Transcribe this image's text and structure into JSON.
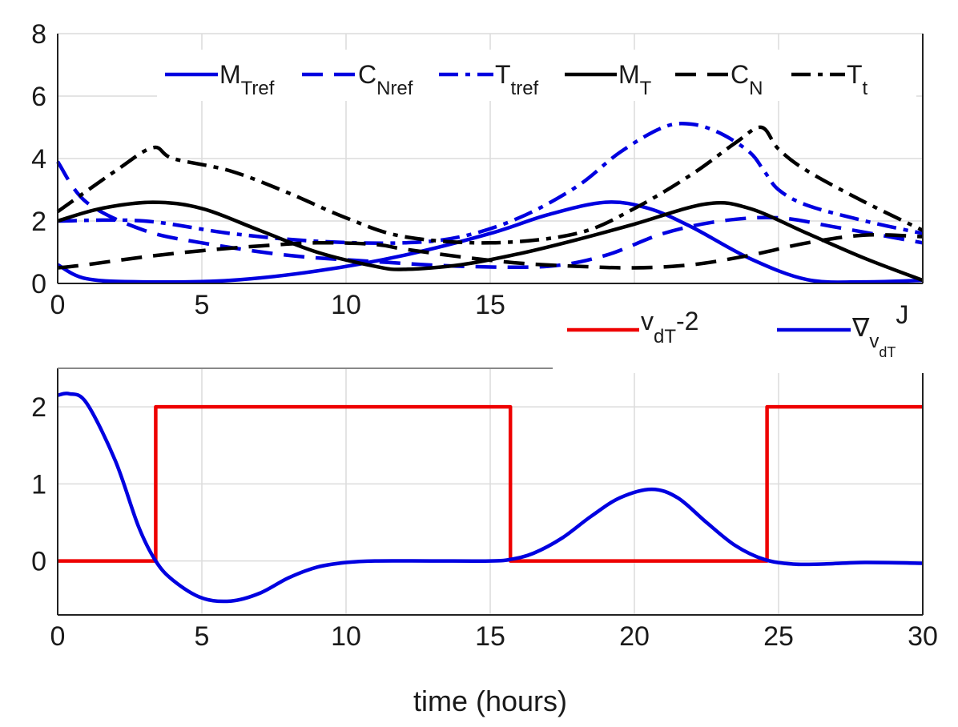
{
  "chart_data": [
    {
      "type": "line",
      "xlim": [
        0,
        30
      ],
      "ylim": [
        0,
        8
      ],
      "xticks": [
        0,
        5,
        10,
        15
      ],
      "yticks": [
        0,
        2,
        4,
        6,
        8
      ],
      "grid": true,
      "legend_placement": "top",
      "series": [
        {
          "name": "M_Tref",
          "label_main": "M",
          "label_sub": "Tref",
          "color": "#0000e0",
          "style": "solid",
          "x": [
            0,
            1,
            3,
            6,
            9,
            12,
            15,
            17,
            19,
            20.5,
            22,
            24,
            26,
            28,
            30
          ],
          "y": [
            0.6,
            0.15,
            0.05,
            0.1,
            0.4,
            0.9,
            1.6,
            2.2,
            2.6,
            2.4,
            1.8,
            0.8,
            0.12,
            0.05,
            0.1
          ]
        },
        {
          "name": "C_Nref",
          "label_main": "C",
          "label_sub": "Nref",
          "color": "#0000e0",
          "style": "dashed",
          "x": [
            0,
            1,
            3,
            5,
            8,
            11,
            14,
            17,
            19,
            21,
            23,
            25,
            27,
            30
          ],
          "y": [
            3.9,
            2.6,
            1.7,
            1.3,
            0.9,
            0.7,
            0.55,
            0.55,
            0.9,
            1.6,
            2.0,
            2.1,
            1.8,
            1.3
          ]
        },
        {
          "name": "T_tref",
          "label_main": "T",
          "label_sub": "tref",
          "color": "#0000e0",
          "style": "dashdot",
          "x": [
            0,
            3,
            6,
            9,
            12,
            14,
            16,
            18,
            19.5,
            21,
            22,
            23,
            24,
            24.5,
            25,
            26,
            28,
            30
          ],
          "y": [
            2.0,
            2.0,
            1.6,
            1.35,
            1.3,
            1.5,
            2.1,
            3.1,
            4.2,
            5.0,
            5.1,
            4.8,
            4.2,
            3.6,
            3.0,
            2.5,
            2.0,
            1.6
          ]
        },
        {
          "name": "M_T",
          "label_main": "M",
          "label_sub": "T",
          "color": "#000000",
          "style": "solid",
          "x": [
            0,
            1.5,
            3.3,
            5,
            7,
            9,
            11,
            12,
            14,
            16,
            18,
            20,
            22.5,
            24,
            26,
            28,
            30
          ],
          "y": [
            2.0,
            2.4,
            2.6,
            2.4,
            1.7,
            1.0,
            0.55,
            0.45,
            0.6,
            0.95,
            1.4,
            1.9,
            2.55,
            2.4,
            1.6,
            0.8,
            0.1
          ]
        },
        {
          "name": "C_N",
          "label_main": "C",
          "label_sub": "N",
          "color": "#000000",
          "style": "dashed",
          "x": [
            0,
            1,
            3,
            5,
            7,
            9,
            11,
            12,
            14,
            16,
            18,
            20,
            22,
            24,
            26,
            28,
            30
          ],
          "y": [
            0.5,
            0.6,
            0.85,
            1.05,
            1.2,
            1.3,
            1.25,
            1.1,
            0.85,
            0.65,
            0.55,
            0.5,
            0.6,
            0.9,
            1.3,
            1.55,
            1.5
          ]
        },
        {
          "name": "T_t",
          "label_main": "T",
          "label_sub": "t",
          "color": "#000000",
          "style": "dashdot",
          "x": [
            0,
            2,
            3.3,
            4,
            6,
            8,
            10,
            12,
            15,
            18,
            20,
            22,
            23.5,
            24.4,
            25,
            26,
            28,
            30
          ],
          "y": [
            2.3,
            3.6,
            4.35,
            4.0,
            3.6,
            2.9,
            2.1,
            1.5,
            1.3,
            1.6,
            2.4,
            3.5,
            4.5,
            5.0,
            4.3,
            3.6,
            2.6,
            1.7
          ]
        }
      ]
    },
    {
      "type": "line",
      "xlim": [
        0,
        30
      ],
      "ylim": [
        -0.7,
        2.5
      ],
      "xticks": [
        0,
        5,
        10,
        15,
        20,
        25,
        30
      ],
      "yticks": [
        0,
        1,
        2
      ],
      "grid": true,
      "xlabel": "time (hours)",
      "legend_placement": "top-right",
      "series": [
        {
          "name": "v_dT-2",
          "label_main": "v",
          "label_sub": "dT",
          "label_tail": "-2",
          "color": "#ee0000",
          "style": "solid",
          "step": true,
          "x": [
            0,
            3.4,
            3.4,
            15.7,
            15.7,
            24.6,
            24.6,
            30
          ],
          "y": [
            0,
            0,
            2,
            2,
            0,
            0,
            2,
            2
          ]
        },
        {
          "name": "grad_v_dT J",
          "label_main": "∇",
          "label_sub": "v",
          "label_subsub": "dT",
          "label_tail": "J",
          "color": "#0000e0",
          "style": "solid",
          "x": [
            0,
            0.4,
            1,
            2,
            2.8,
            3.4,
            4,
            5,
            6,
            7,
            8,
            9,
            10,
            11,
            13,
            15,
            15.7,
            16.5,
            17.5,
            18.5,
            19.5,
            20.6,
            21.5,
            22.5,
            23.5,
            24.5,
            25.5,
            26.5,
            28,
            30
          ],
          "y": [
            2.15,
            2.17,
            2.05,
            1.3,
            0.45,
            0.0,
            -0.25,
            -0.48,
            -0.52,
            -0.42,
            -0.22,
            -0.08,
            -0.02,
            0.0,
            0.0,
            0.0,
            0.02,
            0.1,
            0.3,
            0.58,
            0.82,
            0.93,
            0.82,
            0.5,
            0.2,
            0.02,
            -0.04,
            -0.04,
            -0.02,
            -0.03
          ]
        }
      ]
    }
  ]
}
